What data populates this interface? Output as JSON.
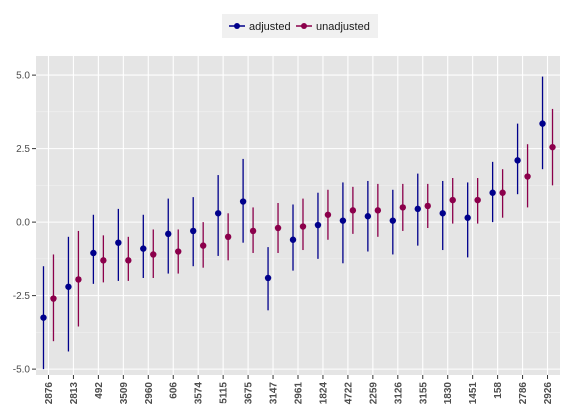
{
  "chart_data": {
    "type": "scatter",
    "subtype": "point-range",
    "grid": true,
    "legend_position": "top",
    "ylim": [
      -5.2,
      5.65
    ],
    "y_ticks": [
      -5.0,
      -2.5,
      0.0,
      2.5,
      5.0
    ],
    "y_tick_labels": [
      "-5.0",
      "-2.5",
      "0.0",
      "2.5",
      "5.0"
    ],
    "categories": [
      "2876",
      "2813",
      "492",
      "3509",
      "2960",
      "606",
      "3574",
      "5115",
      "3675",
      "3147",
      "2961",
      "1824",
      "4722",
      "2259",
      "3126",
      "3155",
      "1830",
      "1451",
      "158",
      "2786",
      "2926"
    ],
    "series": [
      {
        "name": "adjusted",
        "color": "#00008b",
        "values": [
          -3.25,
          -2.2,
          -1.05,
          -0.7,
          -0.9,
          -0.4,
          -0.3,
          0.3,
          0.7,
          -1.9,
          -0.6,
          -0.1,
          0.05,
          0.2,
          0.05,
          0.45,
          0.3,
          0.15,
          1.0,
          2.1,
          3.35
        ],
        "lower": [
          -5.0,
          -4.4,
          -2.1,
          -2.0,
          -1.9,
          -1.75,
          -1.5,
          -1.15,
          -0.7,
          -3.0,
          -1.65,
          -1.25,
          -1.4,
          -1.0,
          -1.1,
          -0.8,
          -0.95,
          -1.2,
          0.0,
          0.95,
          1.8
        ],
        "upper": [
          -1.5,
          -0.5,
          0.25,
          0.45,
          0.25,
          0.8,
          0.85,
          1.6,
          2.15,
          -0.85,
          0.6,
          1.0,
          1.35,
          1.4,
          1.1,
          1.65,
          1.4,
          1.35,
          2.05,
          3.35,
          4.95
        ]
      },
      {
        "name": "unadjusted",
        "color": "#8b004b",
        "values": [
          -2.6,
          -1.95,
          -1.3,
          -1.3,
          -1.1,
          -1.0,
          -0.8,
          -0.5,
          -0.3,
          -0.2,
          -0.15,
          0.25,
          0.4,
          0.4,
          0.5,
          0.55,
          0.75,
          0.75,
          1.0,
          1.55,
          2.55
        ],
        "lower": [
          -4.05,
          -3.55,
          -2.05,
          -2.0,
          -1.9,
          -1.75,
          -1.55,
          -1.3,
          -1.05,
          -1.05,
          -0.95,
          -0.6,
          -0.4,
          -0.5,
          -0.3,
          -0.2,
          -0.05,
          -0.05,
          0.15,
          0.5,
          1.25
        ],
        "upper": [
          -1.1,
          -0.3,
          -0.45,
          -0.5,
          -0.25,
          -0.25,
          0.0,
          0.3,
          0.5,
          0.65,
          0.8,
          1.1,
          1.2,
          1.3,
          1.3,
          1.3,
          1.5,
          1.5,
          1.8,
          2.65,
          3.85
        ]
      }
    ]
  }
}
